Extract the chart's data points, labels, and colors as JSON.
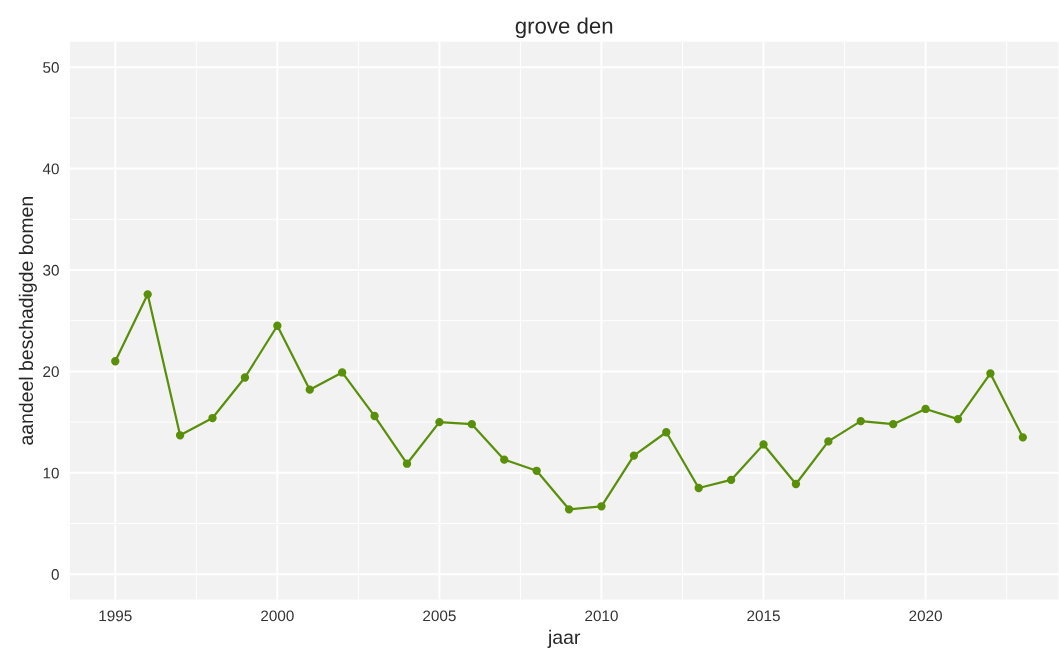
{
  "chart_data": {
    "type": "line",
    "title": "grove den",
    "xlabel": "jaar",
    "ylabel": "aandeel beschadigde bomen",
    "x": [
      1995,
      1996,
      1997,
      1998,
      1999,
      2000,
      2001,
      2002,
      2003,
      2004,
      2005,
      2006,
      2007,
      2008,
      2009,
      2010,
      2011,
      2012,
      2013,
      2014,
      2015,
      2016,
      2017,
      2018,
      2019,
      2020,
      2021,
      2022,
      2023
    ],
    "series": [
      {
        "color": "#5a8f0a",
        "values": [
          21.0,
          27.6,
          13.7,
          15.4,
          19.4,
          24.5,
          18.2,
          19.9,
          15.6,
          10.9,
          15.0,
          14.8,
          11.3,
          10.2,
          6.4,
          6.7,
          11.7,
          14.0,
          8.5,
          9.3,
          12.8,
          8.9,
          13.1,
          15.1,
          14.8,
          16.3,
          15.3,
          19.8,
          13.5
        ]
      }
    ],
    "xlim": [
      1993.6,
      2024.1
    ],
    "ylim": [
      -2.5,
      52.5
    ],
    "xticks": [
      1995,
      2000,
      2005,
      2010,
      2015,
      2020
    ],
    "yticks": [
      0,
      10,
      20,
      30,
      40,
      50
    ],
    "grid": true,
    "marker": "circle",
    "line_style": "solid"
  }
}
